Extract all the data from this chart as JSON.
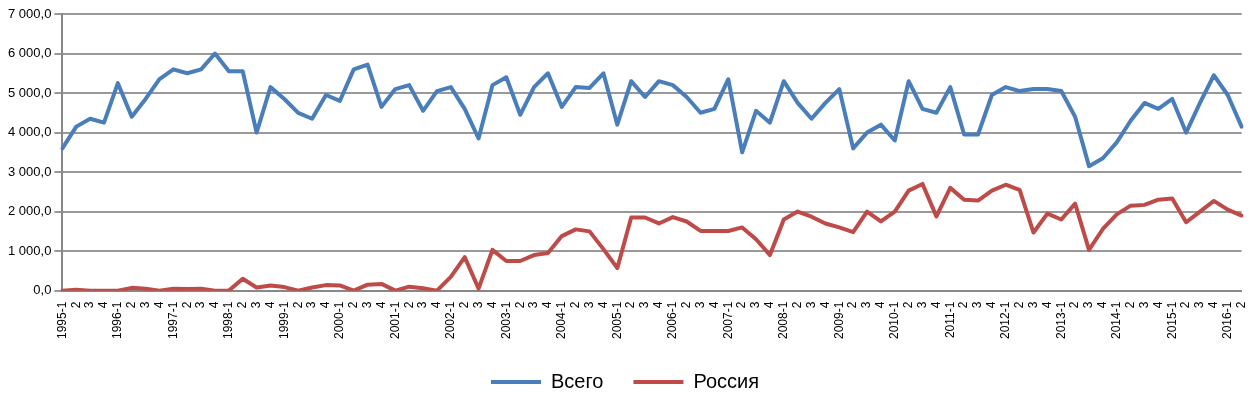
{
  "chart_data": {
    "type": "line",
    "categories": [
      "1995-1",
      "2",
      "3",
      "4",
      "1996-1",
      "2",
      "3",
      "4",
      "1997-1",
      "2",
      "3",
      "4",
      "1998-1",
      "2",
      "3",
      "4",
      "1999-1",
      "2",
      "3",
      "4",
      "2000-1",
      "2",
      "3",
      "4",
      "2001-1",
      "2",
      "3",
      "4",
      "2002-1",
      "2",
      "3",
      "4",
      "2003-1",
      "2",
      "3",
      "4",
      "2004-1",
      "2",
      "3",
      "4",
      "2005-1",
      "2",
      "3",
      "4",
      "2006-1",
      "2",
      "3",
      "4",
      "2007-1",
      "2",
      "3",
      "4",
      "2008-1",
      "2",
      "3",
      "4",
      "2009-1",
      "2",
      "3",
      "4",
      "2010-1",
      "2",
      "3",
      "4",
      "2011-1",
      "2",
      "3",
      "4",
      "2012-1",
      "2",
      "3",
      "4",
      "2013-1",
      "2",
      "3",
      "4",
      "2014-1",
      "2",
      "3",
      "4",
      "2015-1",
      "2",
      "3",
      "4",
      "2016-1",
      "2"
    ],
    "series": [
      {
        "name": "Всего",
        "color": "#4a7ebb",
        "values": [
          3600,
          4150,
          4350,
          4250,
          5250,
          4400,
          4850,
          5350,
          5600,
          5500,
          5600,
          6000,
          5550,
          5550,
          4000,
          5150,
          4850,
          4500,
          4350,
          4950,
          4800,
          5600,
          5720,
          4650,
          5100,
          5200,
          4550,
          5050,
          5150,
          4600,
          3850,
          5200,
          5400,
          4450,
          5150,
          5500,
          4650,
          5150,
          5130,
          5500,
          4200,
          5300,
          4900,
          5300,
          5200,
          4900,
          4500,
          4600,
          5350,
          3500,
          4550,
          4250,
          5300,
          4750,
          4350,
          4750,
          5100,
          3600,
          4000,
          4200,
          3800,
          5300,
          4600,
          4500,
          5150,
          3950,
          3950,
          4950,
          5150,
          5050,
          5100,
          5100,
          5050,
          4400,
          3150,
          3350,
          3750,
          4300,
          4750,
          4600,
          4850,
          4000,
          4750,
          5450,
          4950,
          4150
        ]
      },
      {
        "name": "Россия",
        "color": "#be4b48",
        "values": [
          0,
          20,
          0,
          0,
          0,
          70,
          50,
          0,
          50,
          40,
          50,
          0,
          0,
          300,
          80,
          130,
          90,
          0,
          80,
          140,
          130,
          0,
          150,
          170,
          0,
          100,
          60,
          0,
          350,
          850,
          50,
          1030,
          750,
          750,
          900,
          950,
          1380,
          1550,
          1500,
          1050,
          570,
          1850,
          1850,
          1700,
          1860,
          1750,
          1510,
          1510,
          1510,
          1600,
          1300,
          900,
          1800,
          2000,
          1870,
          1700,
          1600,
          1480,
          2000,
          1750,
          2000,
          2530,
          2700,
          1880,
          2600,
          2300,
          2280,
          2530,
          2680,
          2550,
          1470,
          1950,
          1800,
          2200,
          1030,
          1560,
          1930,
          2150,
          2170,
          2300,
          2330,
          1730,
          2000,
          2270,
          2050,
          1900
        ]
      }
    ],
    "ylim": [
      0,
      7000
    ],
    "yticks": [
      {
        "value": 0,
        "label": "0,0"
      },
      {
        "value": 1000,
        "label": "1 000,0"
      },
      {
        "value": 2000,
        "label": "2 000,0"
      },
      {
        "value": 3000,
        "label": "3 000,0"
      },
      {
        "value": 4000,
        "label": "4 000,0"
      },
      {
        "value": 5000,
        "label": "5 000,0"
      },
      {
        "value": 6000,
        "label": "6 000,0"
      },
      {
        "value": 7000,
        "label": "7 000,0"
      }
    ],
    "grid": "y",
    "legend": "bottom",
    "marker": "none",
    "line_style": "solid"
  }
}
